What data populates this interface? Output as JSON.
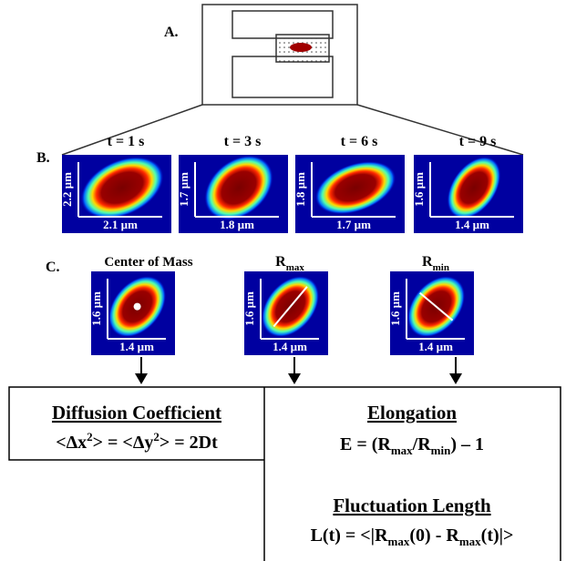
{
  "panel_a": {
    "label": "A."
  },
  "panel_b": {
    "label": "B.",
    "frames": [
      {
        "time": "t = 1 s",
        "height": "2.2 µm",
        "width": "2.1 µm"
      },
      {
        "time": "t = 3 s",
        "height": "1.7 µm",
        "width": "1.8 µm"
      },
      {
        "time": "t = 6 s",
        "height": "1.8 µm",
        "width": "1.7 µm"
      },
      {
        "time": "t = 9 s",
        "height": "1.6 µm",
        "width": "1.4 µm"
      }
    ]
  },
  "panel_c": {
    "label": "C.",
    "frames": [
      {
        "title": [
          "Center of Mass"
        ],
        "height": "1.6 µm",
        "width": "1.4 µm"
      },
      {
        "title": [
          "R",
          "max"
        ],
        "height": "1.6 µm",
        "width": "1.4 µm"
      },
      {
        "title": [
          "R",
          "min"
        ],
        "height": "1.6 µm",
        "width": "1.4 µm"
      }
    ]
  },
  "diffusion": {
    "title": "Diffusion Coefficient",
    "formula": [
      "<Δx",
      "2",
      "> = <Δy",
      "2",
      "> = 2Dt"
    ]
  },
  "elongation": {
    "title": "Elongation",
    "formula": [
      "E = (R",
      "max",
      "/R",
      "min",
      ") – 1"
    ]
  },
  "fluctuation": {
    "title": "Fluctuation Length",
    "formula": [
      "L(t) = <|R",
      "max",
      "(0) - R",
      "max",
      "(t)|>"
    ]
  }
}
